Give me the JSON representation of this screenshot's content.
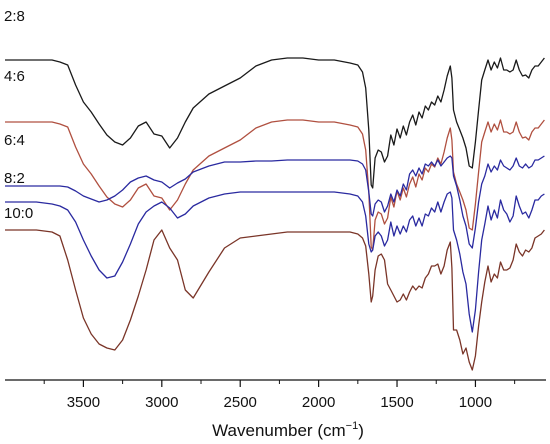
{
  "chart_data": {
    "type": "line",
    "title": "",
    "xlabel": {
      "prefix": "Wavenumber (cm",
      "superscript": "−1",
      "suffix": ")"
    },
    "ylabel": "",
    "xlim": [
      4000,
      550
    ],
    "x_reversed": true,
    "x_ticks": [
      "3500",
      "3000",
      "2500",
      "2000",
      "1500",
      "1000"
    ],
    "x_tick_values": [
      3500,
      3000,
      2500,
      2000,
      1500,
      1000
    ],
    "y_ticks": [],
    "grid": false,
    "legend": "none",
    "series": [
      {
        "name": "2:8",
        "color": "#1a1a1a",
        "offset": 0,
        "x": [
          4000,
          3800,
          3700,
          3650,
          3600,
          3550,
          3500,
          3450,
          3400,
          3350,
          3300,
          3250,
          3200,
          3150,
          3100,
          3050,
          3000,
          2950,
          2900,
          2850,
          2800,
          2700,
          2600,
          2500,
          2400,
          2300,
          2200,
          2100,
          2000,
          1900,
          1800,
          1750,
          1720,
          1700,
          1680,
          1665,
          1655,
          1640,
          1620,
          1600,
          1580,
          1560,
          1540,
          1520,
          1500,
          1480,
          1460,
          1440,
          1420,
          1400,
          1380,
          1360,
          1340,
          1320,
          1300,
          1280,
          1260,
          1240,
          1220,
          1200,
          1180,
          1160,
          1150,
          1140,
          1120,
          1100,
          1080,
          1060,
          1040,
          1020,
          1000,
          980,
          960,
          940,
          920,
          900,
          880,
          860,
          840,
          820,
          800,
          780,
          760,
          740,
          720,
          700,
          680,
          660,
          640,
          620,
          600,
          580,
          560
        ],
        "values": [
          30,
          30,
          30,
          32,
          35,
          55,
          72,
          82,
          94,
          105,
          112,
          115,
          108,
          96,
          92,
          104,
          106,
          118,
          108,
          92,
          78,
          64,
          56,
          48,
          36,
          30,
          28,
          28,
          30,
          30,
          33,
          35,
          42,
          58,
          100,
          155,
          158,
          128,
          120,
          122,
          132,
          126,
          105,
          115,
          99,
          108,
          96,
          105,
          92,
          85,
          95,
          82,
          88,
          76,
          80,
          72,
          75,
          66,
          72,
          60,
          46,
          36,
          48,
          80,
          92,
          100,
          108,
          118,
          136,
          138,
          112,
          80,
          50,
          40,
          30,
          40,
          32,
          38,
          28,
          40,
          40,
          42,
          40,
          30,
          40,
          46,
          45,
          48,
          40,
          36,
          36,
          32,
          28
        ]
      },
      {
        "name": "4:6",
        "color": "#b05040",
        "offset": 62,
        "x": [
          4000,
          3800,
          3700,
          3650,
          3600,
          3550,
          3500,
          3450,
          3400,
          3350,
          3300,
          3250,
          3200,
          3150,
          3100,
          3050,
          3000,
          2950,
          2900,
          2850,
          2800,
          2700,
          2600,
          2500,
          2400,
          2300,
          2200,
          2100,
          2000,
          1900,
          1800,
          1750,
          1720,
          1700,
          1680,
          1665,
          1655,
          1640,
          1620,
          1600,
          1580,
          1560,
          1540,
          1520,
          1500,
          1480,
          1460,
          1440,
          1420,
          1400,
          1380,
          1360,
          1340,
          1320,
          1300,
          1280,
          1260,
          1240,
          1220,
          1200,
          1180,
          1160,
          1150,
          1140,
          1120,
          1100,
          1080,
          1060,
          1040,
          1020,
          1000,
          980,
          960,
          940,
          920,
          900,
          880,
          860,
          840,
          820,
          800,
          780,
          760,
          740,
          720,
          700,
          680,
          660,
          640,
          620,
          600,
          580,
          560
        ],
        "values": [
          30,
          30,
          30,
          32,
          35,
          55,
          72,
          82,
          94,
          105,
          112,
          115,
          108,
          96,
          92,
          104,
          106,
          118,
          108,
          92,
          78,
          64,
          56,
          48,
          36,
          30,
          28,
          28,
          30,
          30,
          33,
          35,
          42,
          58,
          100,
          155,
          158,
          128,
          120,
          122,
          132,
          126,
          105,
          115,
          99,
          108,
          96,
          105,
          92,
          85,
          95,
          82,
          88,
          76,
          80,
          72,
          75,
          66,
          72,
          60,
          46,
          36,
          48,
          80,
          92,
          100,
          108,
          118,
          136,
          138,
          112,
          80,
          50,
          40,
          30,
          40,
          32,
          38,
          28,
          40,
          40,
          42,
          40,
          30,
          40,
          46,
          45,
          48,
          40,
          36,
          36,
          32,
          28
        ]
      },
      {
        "name": "6:4",
        "color": "#2a2aa0",
        "offset": 126,
        "x": [
          4000,
          3800,
          3700,
          3650,
          3600,
          3550,
          3500,
          3450,
          3400,
          3350,
          3300,
          3250,
          3200,
          3150,
          3100,
          3050,
          3000,
          2950,
          2900,
          2850,
          2800,
          2700,
          2600,
          2500,
          2400,
          2300,
          2200,
          2100,
          2000,
          1900,
          1800,
          1750,
          1720,
          1700,
          1680,
          1665,
          1655,
          1640,
          1620,
          1600,
          1580,
          1560,
          1540,
          1520,
          1500,
          1480,
          1460,
          1440,
          1420,
          1400,
          1380,
          1360,
          1340,
          1320,
          1300,
          1280,
          1260,
          1240,
          1220,
          1200,
          1180,
          1160,
          1150,
          1140,
          1120,
          1100,
          1080,
          1060,
          1040,
          1020,
          1000,
          980,
          960,
          940,
          920,
          900,
          880,
          860,
          840,
          820,
          800,
          780,
          760,
          740,
          720,
          700,
          680,
          660,
          640,
          620,
          600,
          580,
          560
        ],
        "values": [
          30,
          30,
          30,
          30,
          31,
          35,
          40,
          43,
          46,
          44,
          40,
          34,
          26,
          22,
          20,
          24,
          26,
          32,
          27,
          23,
          16,
          10,
          6,
          6,
          5,
          5,
          4,
          4,
          4,
          4,
          4,
          5,
          8,
          14,
          36,
          58,
          60,
          48,
          44,
          46,
          56,
          50,
          38,
          46,
          34,
          40,
          28,
          34,
          18,
          14,
          20,
          12,
          18,
          8,
          10,
          6,
          10,
          4,
          10,
          6,
          2,
          0,
          2,
          20,
          30,
          44,
          60,
          70,
          88,
          92,
          72,
          46,
          28,
          20,
          8,
          16,
          10,
          14,
          4,
          10,
          12,
          14,
          10,
          2,
          10,
          12,
          8,
          12,
          10,
          4,
          4,
          2,
          0
        ]
      },
      {
        "name": "8:2",
        "color": "#2a2aa0",
        "offset": 162,
        "x": [
          4000,
          3800,
          3700,
          3650,
          3600,
          3550,
          3500,
          3450,
          3400,
          3350,
          3300,
          3250,
          3200,
          3150,
          3100,
          3050,
          3000,
          2950,
          2900,
          2850,
          2800,
          2700,
          2600,
          2500,
          2400,
          2300,
          2200,
          2100,
          2000,
          1900,
          1800,
          1750,
          1720,
          1700,
          1680,
          1665,
          1655,
          1640,
          1620,
          1600,
          1580,
          1560,
          1540,
          1520,
          1500,
          1480,
          1460,
          1440,
          1420,
          1400,
          1380,
          1360,
          1340,
          1320,
          1300,
          1280,
          1260,
          1240,
          1220,
          1200,
          1180,
          1160,
          1150,
          1140,
          1120,
          1100,
          1080,
          1060,
          1040,
          1020,
          1000,
          980,
          960,
          940,
          920,
          900,
          880,
          860,
          840,
          820,
          800,
          780,
          760,
          740,
          720,
          700,
          680,
          660,
          640,
          620,
          600,
          580,
          560
        ],
        "values": [
          10,
          10,
          12,
          14,
          18,
          30,
          48,
          64,
          78,
          86,
          84,
          70,
          52,
          32,
          20,
          14,
          10,
          16,
          26,
          22,
          14,
          6,
          2,
          0,
          0,
          0,
          0,
          0,
          0,
          0,
          2,
          4,
          10,
          24,
          52,
          60,
          58,
          44,
          40,
          44,
          54,
          48,
          30,
          44,
          34,
          42,
          34,
          40,
          28,
          24,
          34,
          26,
          34,
          22,
          24,
          16,
          20,
          10,
          20,
          10,
          2,
          0,
          6,
          38,
          48,
          62,
          80,
          92,
          122,
          140,
          118,
          80,
          48,
          32,
          14,
          28,
          18,
          26,
          8,
          18,
          22,
          30,
          24,
          4,
          14,
          22,
          20,
          26,
          18,
          8,
          8,
          4,
          2
        ]
      },
      {
        "name": "10:0",
        "color": "#7a3528",
        "offset": 200,
        "x": [
          4000,
          3800,
          3700,
          3650,
          3600,
          3550,
          3500,
          3450,
          3400,
          3350,
          3300,
          3250,
          3200,
          3150,
          3100,
          3050,
          3000,
          2950,
          2900,
          2850,
          2800,
          2700,
          2600,
          2500,
          2400,
          2300,
          2200,
          2100,
          2000,
          1900,
          1800,
          1750,
          1720,
          1700,
          1680,
          1665,
          1655,
          1640,
          1620,
          1600,
          1580,
          1560,
          1540,
          1520,
          1500,
          1480,
          1460,
          1440,
          1420,
          1400,
          1380,
          1360,
          1340,
          1320,
          1300,
          1280,
          1260,
          1240,
          1220,
          1200,
          1180,
          1160,
          1150,
          1140,
          1120,
          1100,
          1080,
          1060,
          1040,
          1020,
          1000,
          980,
          960,
          940,
          920,
          900,
          880,
          860,
          840,
          820,
          800,
          780,
          760,
          740,
          720,
          700,
          680,
          660,
          640,
          620,
          600,
          580,
          560
        ],
        "values": [
          0,
          0,
          2,
          6,
          30,
          60,
          88,
          104,
          114,
          118,
          120,
          110,
          90,
          66,
          40,
          10,
          0,
          18,
          30,
          60,
          68,
          42,
          18,
          8,
          6,
          4,
          2,
          2,
          2,
          2,
          2,
          4,
          8,
          16,
          44,
          72,
          66,
          40,
          26,
          24,
          30,
          54,
          60,
          66,
          72,
          70,
          64,
          70,
          62,
          56,
          60,
          56,
          58,
          48,
          44,
          36,
          36,
          34,
          44,
          36,
          20,
          12,
          38,
          100,
          100,
          110,
          124,
          118,
          132,
          140,
          126,
          96,
          72,
          52,
          36,
          52,
          44,
          48,
          32,
          40,
          40,
          38,
          30,
          14,
          22,
          26,
          20,
          22,
          18,
          8,
          6,
          4,
          0
        ]
      }
    ]
  }
}
